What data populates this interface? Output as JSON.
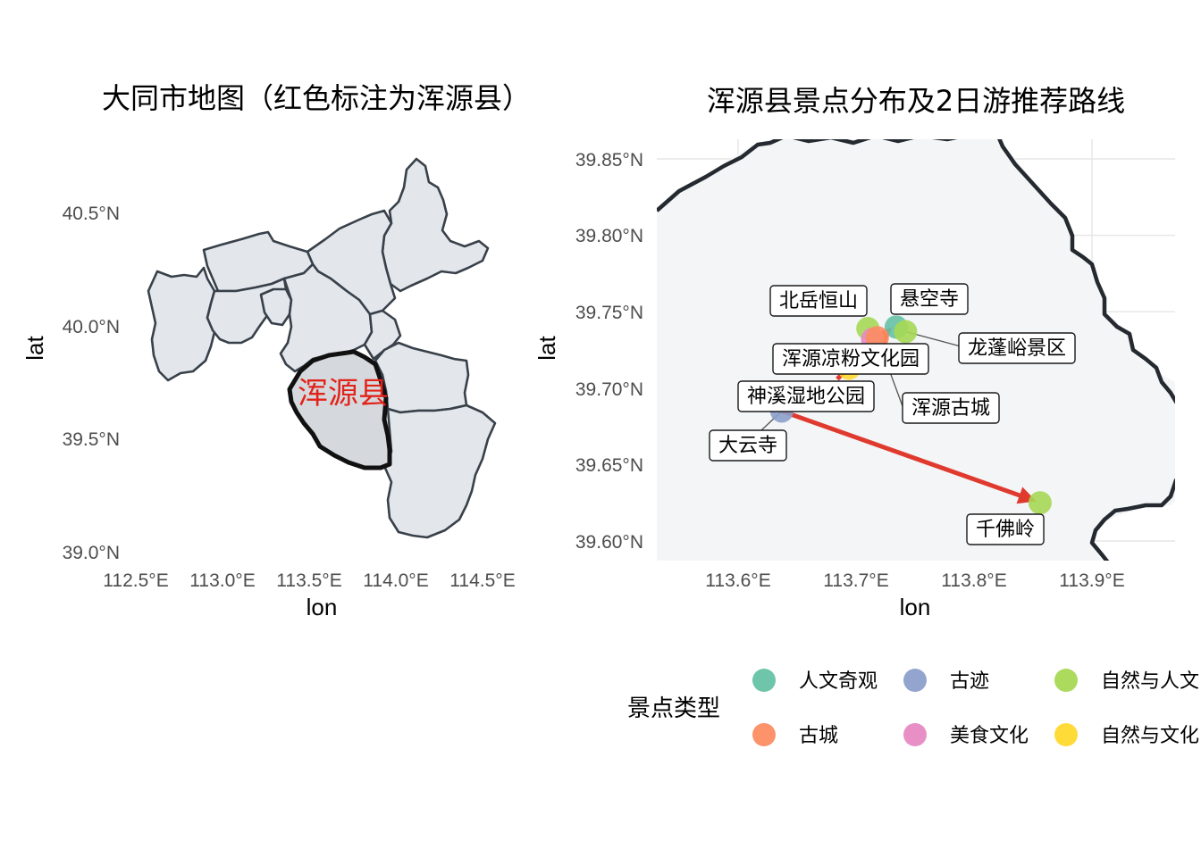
{
  "left_panel": {
    "title": "大同市地图（红色标注为浑源县）",
    "xlabel": "lon",
    "ylabel": "lat",
    "x_ticks": [
      "112.5°E",
      "113.0°E",
      "113.5°E",
      "114.0°E",
      "114.5°E"
    ],
    "y_ticks": [
      "39.0°N",
      "39.5°N",
      "40.0°N",
      "40.5°N"
    ],
    "highlight_label": "浑源县",
    "highlight_color": "#e2231a"
  },
  "right_panel": {
    "title": "浑源县景点分布及2日游推荐路线",
    "xlabel": "lon",
    "ylabel": "lat",
    "x_ticks": [
      "113.6°E",
      "113.7°E",
      "113.8°E",
      "113.9°E"
    ],
    "y_ticks": [
      "39.60°N",
      "39.65°N",
      "39.70°N",
      "39.75°N",
      "39.80°N",
      "39.85°N"
    ],
    "route_color": "#e03a2f"
  },
  "chart_data": {
    "type": "scatter",
    "title": "浑源县景点分布及2日游推荐路线",
    "xlabel": "lon",
    "ylabel": "lat",
    "xlim": [
      113.53,
      113.97
    ],
    "ylim": [
      39.588,
      39.862
    ],
    "series": [
      {
        "name": "北岳恒山",
        "category": "自然与人文",
        "lon": 113.71,
        "lat": 39.739
      },
      {
        "name": "悬空寺",
        "category": "人文奇观",
        "lon": 113.734,
        "lat": 39.74
      },
      {
        "name": "龙蓬峪景区",
        "category": "自然与人文",
        "lon": 113.742,
        "lat": 39.737
      },
      {
        "name": "浑源凉粉文化园",
        "category": "美食文化",
        "lon": 113.714,
        "lat": 39.732
      },
      {
        "name": "浑源古城",
        "category": "古城",
        "lon": 113.718,
        "lat": 39.733
      },
      {
        "name": "神溪湿地公园",
        "category": "自然与文化",
        "lon": 113.694,
        "lat": 39.713
      },
      {
        "name": "大云寺",
        "category": "古迹",
        "lon": 113.637,
        "lat": 39.685
      },
      {
        "name": "千佛岭",
        "category": "自然与人文",
        "lon": 113.856,
        "lat": 39.625
      }
    ],
    "route": {
      "from": {
        "lon": 113.637,
        "lat": 39.685
      },
      "to": {
        "lon": 113.856,
        "lat": 39.625
      },
      "segment2_from": {
        "lon": 113.684,
        "lat": 39.706
      },
      "segment2_to": {
        "lon": 113.728,
        "lat": 39.738
      }
    }
  },
  "legend": {
    "title": "景点类型",
    "items": [
      {
        "label": "人文奇观",
        "color": "#66c2a5"
      },
      {
        "label": "古迹",
        "color": "#8da0cb"
      },
      {
        "label": "自然与人文",
        "color": "#a6d854"
      },
      {
        "label": "古城",
        "color": "#fc8d62"
      },
      {
        "label": "美食文化",
        "color": "#e78ac3"
      },
      {
        "label": "自然与文化",
        "color": "#ffd92f"
      }
    ]
  }
}
